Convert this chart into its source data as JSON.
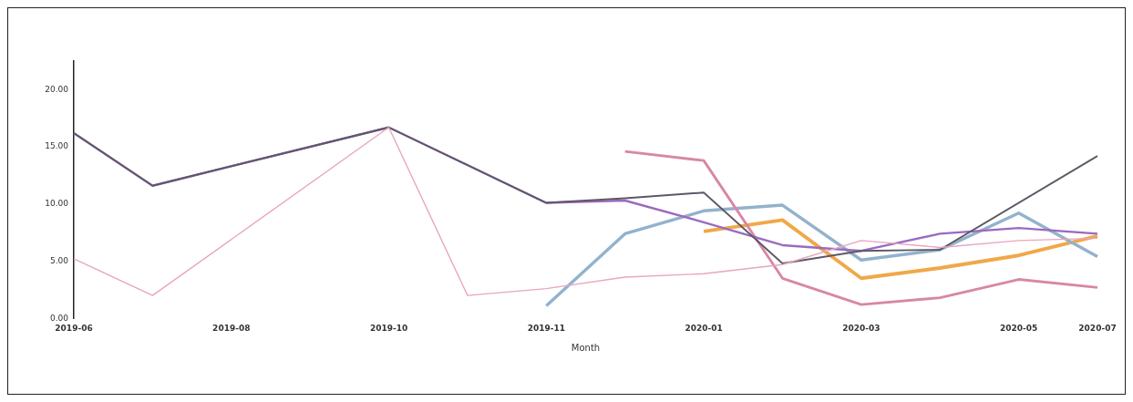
{
  "chart_data": {
    "type": "line",
    "xlabel": "Month",
    "categories": [
      "2019-06",
      null,
      "2019-08",
      null,
      "2019-10",
      null,
      "2019-11",
      null,
      "2020-01",
      null,
      "2020-03",
      null,
      "2020-05",
      "2020-07"
    ],
    "ylim": [
      0,
      22.5
    ],
    "yticks": [
      {
        "value": 0,
        "label": "0.00"
      },
      {
        "value": 5,
        "label": "5.00"
      },
      {
        "value": 10,
        "label": "10.00"
      },
      {
        "value": 15,
        "label": "15.00"
      },
      {
        "value": 20,
        "label": "20.00"
      }
    ],
    "grid": false,
    "legend": false,
    "marker": "none",
    "series": [
      {
        "color": "#e8a6bf",
        "values": [
          5.2,
          2.0,
          null,
          null,
          16.7,
          2.0,
          2.6,
          3.6,
          3.9,
          4.7,
          6.8,
          6.2,
          6.8,
          7.0
        ]
      },
      {
        "color": "#5e5866",
        "values": [
          16.2,
          11.6,
          null,
          null,
          16.7,
          null,
          10.1,
          10.5,
          11.0,
          4.8,
          5.9,
          6.0,
          null,
          14.2
        ]
      },
      {
        "color": "#9b6bbf",
        "values": [
          16.2,
          11.6,
          null,
          null,
          16.7,
          null,
          10.1,
          10.3,
          8.4,
          6.4,
          5.9,
          7.4,
          7.9,
          7.4
        ]
      },
      {
        "color": "#d887a6",
        "values": [
          null,
          null,
          null,
          null,
          null,
          null,
          null,
          14.6,
          13.8,
          3.5,
          1.2,
          1.8,
          3.4,
          2.7
        ]
      },
      {
        "color": "#93b2cc",
        "values": [
          null,
          null,
          null,
          null,
          null,
          null,
          1.1,
          7.4,
          9.4,
          9.9,
          5.1,
          6.0,
          9.2,
          5.4
        ]
      },
      {
        "color": "#f0a848",
        "values": [
          null,
          null,
          null,
          null,
          null,
          null,
          null,
          null,
          7.6,
          8.6,
          3.5,
          4.4,
          5.5,
          7.2
        ]
      }
    ]
  }
}
